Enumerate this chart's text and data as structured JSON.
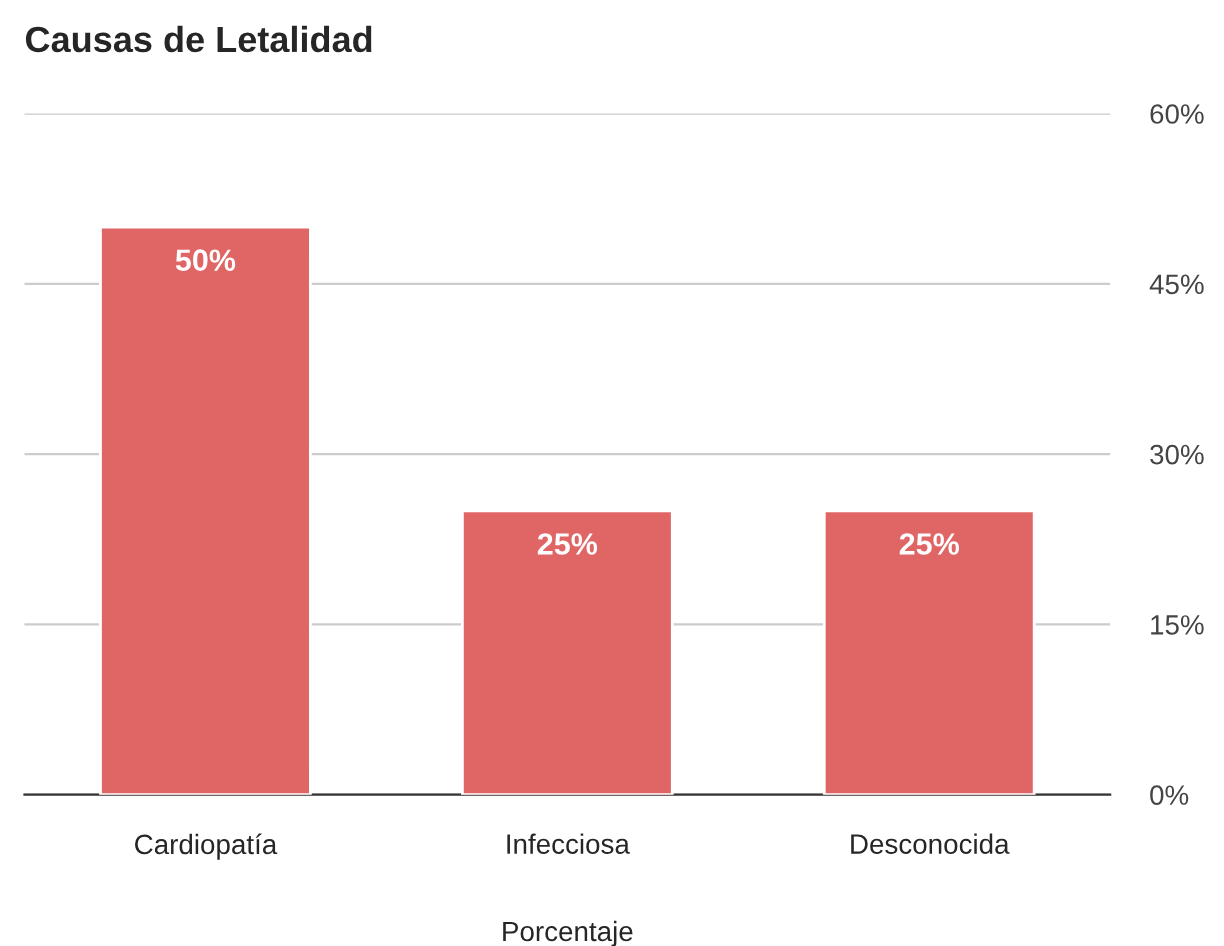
{
  "chart_data": {
    "type": "bar",
    "title": "Causas de Letalidad",
    "xlabel": "Porcentaje",
    "categories": [
      "Cardiopatía",
      "Infecciosa",
      "Desconocida"
    ],
    "values": [
      50,
      25,
      25
    ],
    "color": "#e06666",
    "value_labels": [
      "50%",
      "25%",
      "25%"
    ],
    "ylim": [
      0,
      60
    ],
    "yticks": [
      {
        "value": 0,
        "label": "0%"
      },
      {
        "value": 15,
        "label": "15%"
      },
      {
        "value": 30,
        "label": "30%"
      },
      {
        "value": 45,
        "label": "45%"
      },
      {
        "value": 60,
        "label": "60%"
      }
    ],
    "grid": "y",
    "legend": false
  }
}
